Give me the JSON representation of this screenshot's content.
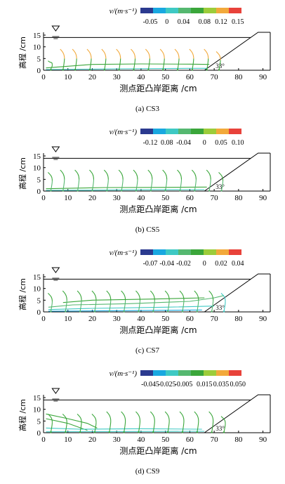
{
  "figure": {
    "legend_title": "v/(m·s⁻¹)",
    "xlabel": "测点距凸岸距离 /cm",
    "ylabel": "高程 /cm",
    "angle_label": "33°",
    "colors": [
      "#2b3a8f",
      "#19a8e0",
      "#3ec9c4",
      "#55b870",
      "#3aa63a",
      "#9ccc3a",
      "#f2a93b",
      "#e8423a"
    ]
  },
  "chart_data": [
    {
      "type": "line",
      "caption": "(a) CS3",
      "colorbar_labels": [
        "-0.05",
        "0",
        "0.04",
        "0.08",
        "0.12",
        "0.15"
      ],
      "x_ticks": [
        0,
        10,
        20,
        30,
        40,
        50,
        60,
        70,
        80,
        90
      ],
      "y_ticks": [
        0,
        5,
        10,
        15
      ],
      "xlim": [
        0,
        93
      ],
      "ylim": [
        0,
        15
      ],
      "water_level": 14,
      "bank": {
        "toe_x": 66,
        "top_x": 88,
        "top_y": 15
      },
      "verticals": [
        {
          "x": 3,
          "top": 4,
          "ch": 0.5,
          "ct": 0.55
        },
        {
          "x": 8,
          "top": 9,
          "ch": 0.55,
          "ct": 0.85
        },
        {
          "x": 13,
          "top": 9,
          "ch": 0.55,
          "ct": 0.85
        },
        {
          "x": 19,
          "top": 9,
          "ch": 0.55,
          "ct": 0.85
        },
        {
          "x": 25,
          "top": 9,
          "ch": 0.55,
          "ct": 0.85
        },
        {
          "x": 31,
          "top": 9,
          "ch": 0.55,
          "ct": 0.85
        },
        {
          "x": 37,
          "top": 9,
          "ch": 0.55,
          "ct": 0.85
        },
        {
          "x": 43,
          "top": 9,
          "ch": 0.55,
          "ct": 0.85
        },
        {
          "x": 49,
          "top": 9,
          "ch": 0.55,
          "ct": 0.85
        },
        {
          "x": 55,
          "top": 9,
          "ch": 0.55,
          "ct": 0.85
        },
        {
          "x": 61,
          "top": 9,
          "ch": 0.55,
          "ct": 0.85
        },
        {
          "x": 67,
          "top": 9,
          "ch": 0.55,
          "ct": 0.85
        },
        {
          "x": 72,
          "top": 8,
          "ch": 0.55,
          "ct": 0.85
        }
      ],
      "curves": [
        {
          "pts": [
            [
              1,
              1
            ],
            [
              20,
              2.5
            ],
            [
              40,
              2.7
            ],
            [
              60,
              2.6
            ],
            [
              68,
              2.5
            ]
          ],
          "c": 0.5
        },
        {
          "pts": [
            [
              1,
              0.3
            ],
            [
              30,
              0.6
            ],
            [
              60,
              0.8
            ],
            [
              67,
              0.8
            ]
          ],
          "c": 0.3
        }
      ]
    },
    {
      "type": "line",
      "caption": "(b) CS5",
      "colorbar_labels": [
        "-0.12",
        "0.08",
        "-0.04",
        "0",
        "0.05",
        "0.10"
      ],
      "x_ticks": [
        0,
        10,
        20,
        30,
        40,
        50,
        60,
        70,
        80,
        90
      ],
      "y_ticks": [
        0,
        5,
        10,
        15
      ],
      "xlim": [
        0,
        93
      ],
      "ylim": [
        0,
        15
      ],
      "water_level": 14,
      "bank": {
        "toe_x": 66,
        "top_x": 88,
        "top_y": 15
      },
      "verticals": [
        {
          "x": 3,
          "top": 8,
          "ch": 0.45,
          "ct": 0.6
        },
        {
          "x": 8,
          "top": 9,
          "ch": 0.45,
          "ct": 0.6
        },
        {
          "x": 14,
          "top": 9,
          "ch": 0.45,
          "ct": 0.6
        },
        {
          "x": 20,
          "top": 9,
          "ch": 0.45,
          "ct": 0.6
        },
        {
          "x": 26,
          "top": 9,
          "ch": 0.45,
          "ct": 0.6
        },
        {
          "x": 32,
          "top": 9,
          "ch": 0.45,
          "ct": 0.6
        },
        {
          "x": 38,
          "top": 9,
          "ch": 0.45,
          "ct": 0.6
        },
        {
          "x": 44,
          "top": 9,
          "ch": 0.45,
          "ct": 0.6
        },
        {
          "x": 50,
          "top": 9,
          "ch": 0.45,
          "ct": 0.6
        },
        {
          "x": 56,
          "top": 9,
          "ch": 0.45,
          "ct": 0.6
        },
        {
          "x": 62,
          "top": 9,
          "ch": 0.45,
          "ct": 0.6
        },
        {
          "x": 68,
          "top": 9,
          "ch": 0.45,
          "ct": 0.6
        },
        {
          "x": 73,
          "top": 8,
          "ch": 0.45,
          "ct": 0.6
        }
      ],
      "curves": [
        {
          "pts": [
            [
              1,
              1
            ],
            [
              25,
              1.5
            ],
            [
              50,
              1.6
            ],
            [
              67,
              1.7
            ]
          ],
          "c": 0.5
        },
        {
          "pts": [
            [
              1,
              0.3
            ],
            [
              35,
              0.5
            ],
            [
              66,
              0.6
            ]
          ],
          "c": 0.3
        }
      ]
    },
    {
      "type": "line",
      "caption": "(c) CS7",
      "colorbar_labels": [
        "-0.07",
        "-0.04",
        "-0.02",
        "0",
        "0.02",
        "0.04"
      ],
      "x_ticks": [
        0,
        10,
        20,
        30,
        40,
        50,
        60,
        70,
        80,
        90
      ],
      "y_ticks": [
        0,
        5,
        10,
        15
      ],
      "xlim": [
        0,
        93
      ],
      "ylim": [
        0,
        15
      ],
      "water_level": 14,
      "bank": {
        "toe_x": 66,
        "top_x": 88,
        "top_y": 15
      },
      "verticals": [
        {
          "x": 3,
          "top": 8,
          "ch": 0.45,
          "ct": 0.5
        },
        {
          "x": 9,
          "top": 9,
          "ch": 0.45,
          "ct": 0.6
        },
        {
          "x": 15,
          "top": 9,
          "ch": 0.45,
          "ct": 0.6
        },
        {
          "x": 21,
          "top": 9,
          "ch": 0.45,
          "ct": 0.6
        },
        {
          "x": 27,
          "top": 9,
          "ch": 0.45,
          "ct": 0.6
        },
        {
          "x": 33,
          "top": 9,
          "ch": 0.45,
          "ct": 0.6
        },
        {
          "x": 39,
          "top": 9,
          "ch": 0.45,
          "ct": 0.6
        },
        {
          "x": 45,
          "top": 9,
          "ch": 0.45,
          "ct": 0.6
        },
        {
          "x": 51,
          "top": 9,
          "ch": 0.45,
          "ct": 0.6
        },
        {
          "x": 57,
          "top": 9,
          "ch": 0.45,
          "ct": 0.6
        },
        {
          "x": 63,
          "top": 9,
          "ch": 0.45,
          "ct": 0.6
        },
        {
          "x": 69,
          "top": 9,
          "ch": 0.45,
          "ct": 0.6
        },
        {
          "x": 74,
          "top": 8,
          "ch": 0.3,
          "ct": 0.25
        }
      ],
      "curves": [
        {
          "pts": [
            [
              2,
              2
            ],
            [
              12,
              3
            ],
            [
              35,
              3.5
            ],
            [
              60,
              4.5
            ],
            [
              70,
              6
            ],
            [
              74,
              7
            ]
          ],
          "c": 0.4
        },
        {
          "pts": [
            [
              2,
              1
            ],
            [
              20,
              1.5
            ],
            [
              50,
              2
            ],
            [
              70,
              2.5
            ]
          ],
          "c": 0.25
        },
        {
          "pts": [
            [
              2,
              0.3
            ],
            [
              30,
              0.5
            ],
            [
              65,
              0.8
            ]
          ],
          "c": 0.2
        },
        {
          "pts": [
            [
              8,
              4
            ],
            [
              20,
              5
            ],
            [
              45,
              5.5
            ],
            [
              66,
              6
            ]
          ],
          "c": 0.5
        }
      ]
    },
    {
      "type": "line",
      "caption": "(d) CS9",
      "colorbar_labels": [
        "-0.045",
        "-0.025",
        "-0.005",
        "0.015",
        "0.035",
        "0.050"
      ],
      "x_ticks": [
        0,
        10,
        20,
        30,
        40,
        50,
        60,
        70,
        80,
        90
      ],
      "y_ticks": [
        0,
        5,
        10,
        15
      ],
      "xlim": [
        0,
        93
      ],
      "ylim": [
        0,
        15
      ],
      "water_level": 14,
      "bank": {
        "toe_x": 66,
        "top_x": 88,
        "top_y": 15
      },
      "verticals": [
        {
          "x": 3,
          "top": 8,
          "ch": 0.5,
          "ct": 0.55
        },
        {
          "x": 9,
          "top": 8,
          "ch": 0.5,
          "ct": 0.55
        },
        {
          "x": 15,
          "top": 8,
          "ch": 0.5,
          "ct": 0.55
        },
        {
          "x": 21,
          "top": 8,
          "ch": 0.5,
          "ct": 0.55
        },
        {
          "x": 27,
          "top": 9,
          "ch": 0.5,
          "ct": 0.6
        },
        {
          "x": 33,
          "top": 9,
          "ch": 0.5,
          "ct": 0.6
        },
        {
          "x": 39,
          "top": 9,
          "ch": 0.5,
          "ct": 0.6
        },
        {
          "x": 45,
          "top": 9,
          "ch": 0.5,
          "ct": 0.6
        },
        {
          "x": 51,
          "top": 9,
          "ch": 0.5,
          "ct": 0.6
        },
        {
          "x": 57,
          "top": 9,
          "ch": 0.5,
          "ct": 0.6
        },
        {
          "x": 63,
          "top": 9,
          "ch": 0.5,
          "ct": 0.6
        },
        {
          "x": 69,
          "top": 9,
          "ch": 0.5,
          "ct": 0.6
        },
        {
          "x": 74,
          "top": 7,
          "ch": 0.5,
          "ct": 0.6
        }
      ],
      "curves": [
        {
          "pts": [
            [
              1,
              8
            ],
            [
              10,
              6
            ],
            [
              18,
              4
            ],
            [
              22,
              2
            ]
          ],
          "c": 0.6
        },
        {
          "pts": [
            [
              1,
              6
            ],
            [
              10,
              4
            ],
            [
              18,
              1
            ]
          ],
          "c": 0.55
        },
        {
          "pts": [
            [
              1,
              2
            ],
            [
              15,
              1.5
            ],
            [
              40,
              1.7
            ],
            [
              65,
              1.5
            ]
          ],
          "c": 0.3
        },
        {
          "pts": [
            [
              1,
              0.4
            ],
            [
              35,
              0.5
            ],
            [
              66,
              0.6
            ]
          ],
          "c": 0.25
        }
      ]
    }
  ]
}
